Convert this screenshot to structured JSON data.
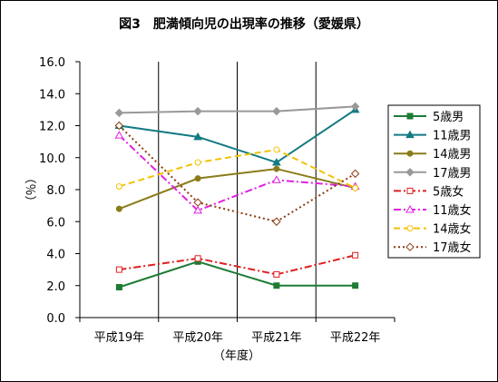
{
  "chart_data": {
    "type": "line",
    "title": "図3　肥満傾向児の出現率の推移（愛媛県）",
    "xlabel": "（年度）",
    "ylabel": "（％）",
    "categories": [
      "平成19年",
      "平成20年",
      "平成21年",
      "平成22年"
    ],
    "ylim": [
      0,
      16
    ],
    "yticks": [
      "0.0",
      "2.0",
      "4.0",
      "6.0",
      "8.0",
      "10.0",
      "12.0",
      "14.0",
      "16.0"
    ],
    "grid": "vertical lines at category boundaries",
    "legend_position": "right",
    "series": [
      {
        "name": "5歳男",
        "values": [
          1.9,
          3.5,
          2.0,
          2.0
        ],
        "color": "#1e7b34",
        "dash": "solid",
        "marker": "square-filled"
      },
      {
        "name": "11歳男",
        "values": [
          12.0,
          11.3,
          9.7,
          13.0
        ],
        "color": "#127a82",
        "dash": "solid",
        "marker": "triangle-filled"
      },
      {
        "name": "14歳男",
        "values": [
          6.8,
          8.7,
          9.3,
          8.1
        ],
        "color": "#8a7c1a",
        "dash": "solid",
        "marker": "circle-filled"
      },
      {
        "name": "17歳男",
        "values": [
          12.8,
          12.9,
          12.9,
          13.2
        ],
        "color": "#999999",
        "dash": "solid",
        "marker": "diamond-filled"
      },
      {
        "name": "5歳女",
        "values": [
          3.0,
          3.7,
          2.7,
          3.9
        ],
        "color": "#e02020",
        "dash": "dashdot",
        "marker": "square-open"
      },
      {
        "name": "11歳女",
        "values": [
          11.4,
          6.7,
          8.6,
          8.2
        ],
        "color": "#e020e0",
        "dash": "dashdot",
        "marker": "triangle-open"
      },
      {
        "name": "14歳女",
        "values": [
          8.2,
          9.7,
          10.5,
          8.1
        ],
        "color": "#f2c200",
        "dash": "dash",
        "marker": "circle-open"
      },
      {
        "name": "17歳女",
        "values": [
          12.0,
          7.2,
          6.0,
          9.0
        ],
        "color": "#8b3a0e",
        "dash": "dot",
        "marker": "diamond-open"
      }
    ]
  }
}
